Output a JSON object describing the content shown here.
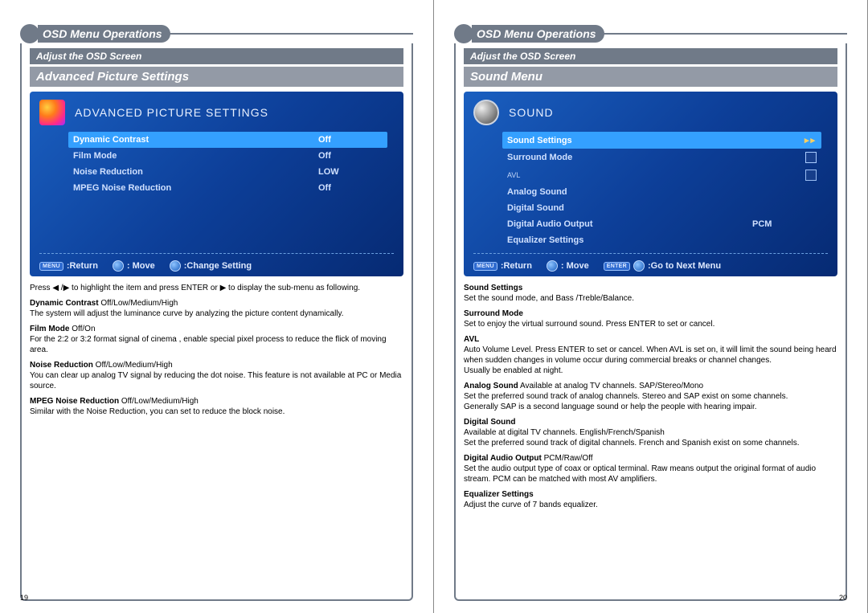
{
  "header": "OSD Menu Operations",
  "subheader": "Adjust the OSD Screen",
  "colors": {
    "frame": "#707a88",
    "osd_bg_start": "#1a5fc0",
    "osd_bg_end": "#062a73",
    "highlight": "#34a0ff"
  },
  "left": {
    "page_number": "19",
    "section_title": "Advanced Picture Settings",
    "osd_title": "ADVANCED PICTURE SETTINGS",
    "rows": [
      {
        "label": "Dynamic Contrast",
        "value": "Off",
        "hl": true
      },
      {
        "label": "Film Mode",
        "value": "Off"
      },
      {
        "label": "Noise Reduction",
        "value": "LOW"
      },
      {
        "label": "MPEG Noise Reduction",
        "value": "Off"
      }
    ],
    "foot": {
      "return_btn": "MENU",
      "return_lab": ":Return",
      "move_lab": ": Move",
      "change_lab": ":Change Setting"
    },
    "intro": "Press ◀ /▶ to highlight the item and press ENTER or ▶ to display the sub-menu as following.",
    "items": [
      {
        "t": "Dynamic Contrast",
        "o": "Off/Low/Medium/High",
        "d": "The system will adjust the luminance curve by analyzing the picture content dynamically."
      },
      {
        "t": "Film Mode",
        "o": "Off/On",
        "d": "For the 2:2 or 3:2 format signal of cinema , enable special pixel process to reduce the flick of moving area."
      },
      {
        "t": "Noise Reduction",
        "o": "Off/Low/Medium/High",
        "d": "You can clear up analog TV signal by reducing the dot noise. This feature is not available at PC or Media source."
      },
      {
        "t": "MPEG Noise Reduction",
        "o": "Off/Low/Medium/High",
        "d": "Similar with the Noise Reduction, you can set to reduce the block noise."
      }
    ]
  },
  "right": {
    "page_number": "20",
    "section_title": "Sound Menu",
    "osd_title": "SOUND",
    "rows": [
      {
        "label": "Sound Settings",
        "hl": true,
        "arrows": true
      },
      {
        "label": "Surround Mode",
        "checkbox": true
      },
      {
        "label": "AVL",
        "avl": true,
        "checkbox": true
      },
      {
        "label": "Analog Sound"
      },
      {
        "label": "Digital Sound"
      },
      {
        "label": "Digital Audio Output",
        "value": "PCM"
      },
      {
        "label": "Equalizer Settings"
      }
    ],
    "foot": {
      "return_btn": "MENU",
      "return_lab": ":Return",
      "move_lab": ": Move",
      "enter_btn": "ENTER",
      "enter_lab": ":Go to Next Menu"
    },
    "items": [
      {
        "t": "Sound Settings",
        "o": "",
        "d": "Set the sound mode, and Bass /Treble/Balance."
      },
      {
        "t": "Surround Mode",
        "o": "",
        "d": "Set to enjoy the virtual surround sound. Press ENTER to set or cancel."
      },
      {
        "t": "AVL",
        "o": "",
        "d": "Auto Volume Level. Press ENTER to set  or cancel. When AVL is set on, it will limit the sound being heard when sudden changes in volume occur during commercial breaks or channel changes.\nUsually be enabled at night."
      },
      {
        "t": "Analog Sound",
        "o": "Available at analog TV channels. SAP/Stereo/Mono",
        "d": "Set the preferred sound track of analog channels. Stereo and SAP exist on some channels.\nGenerally SAP is a second language sound or help the people with hearing impair."
      },
      {
        "t": "Digital Sound",
        "o": "",
        "d": "Available at digital TV channels. English/French/Spanish\nSet the preferred sound track of digital channels. French and Spanish exist on some channels."
      },
      {
        "t": "Digital Audio Output",
        "o": "PCM/Raw/Off",
        "d": "Set the audio output type of coax or optical terminal. Raw means output the original format of audio stream. PCM can be matched with most AV amplifiers."
      },
      {
        "t": "Equalizer Settings",
        "o": "",
        "d": "Adjust the curve of 7 bands equalizer."
      }
    ]
  }
}
